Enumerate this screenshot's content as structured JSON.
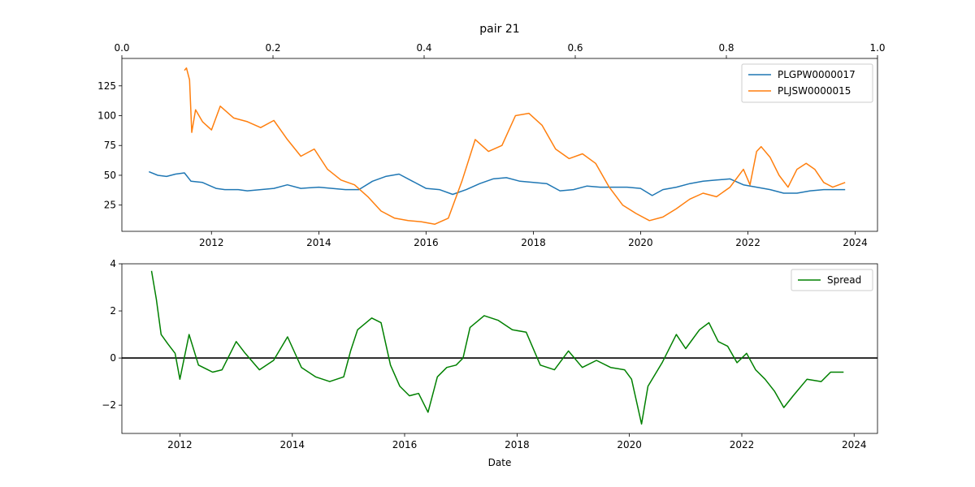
{
  "chart_data": [
    {
      "type": "line",
      "title": "pair 21",
      "x_type": "date",
      "xlim": [
        "2010-05-01",
        "2024-06-01"
      ],
      "ylim": [
        3,
        148
      ],
      "xticks": [
        "2012-01-01",
        "2014-01-01",
        "2016-01-01",
        "2018-01-01",
        "2020-01-01",
        "2022-01-01",
        "2024-01-01"
      ],
      "xtick_labels": [
        "2012",
        "2014",
        "2016",
        "2018",
        "2020",
        "2022",
        "2024"
      ],
      "yticks": [
        25,
        50,
        75,
        100,
        125
      ],
      "ytick_labels": [
        "25",
        "50",
        "75",
        "100",
        "125"
      ],
      "top_axis": {
        "xlim": [
          0,
          1
        ],
        "ticks": [
          0.0,
          0.2,
          0.4,
          0.6,
          0.8,
          1.0
        ],
        "tick_labels": [
          "0.0",
          "0.2",
          "0.4",
          "0.6",
          "0.8",
          "1.0"
        ]
      },
      "legend": "top-right",
      "grid": false,
      "series": [
        {
          "name": "PLGPW0000017",
          "color": "#1f77b4",
          "points": [
            [
              "2010-11-01",
              53
            ],
            [
              "2011-01-01",
              50
            ],
            [
              "2011-03-01",
              49
            ],
            [
              "2011-05-01",
              51
            ],
            [
              "2011-07-01",
              52
            ],
            [
              "2011-08-15",
              45
            ],
            [
              "2011-11-01",
              44
            ],
            [
              "2012-02-01",
              39
            ],
            [
              "2012-04-01",
              38
            ],
            [
              "2012-07-01",
              38
            ],
            [
              "2012-09-01",
              37
            ],
            [
              "2012-12-01",
              38
            ],
            [
              "2013-03-01",
              39
            ],
            [
              "2013-06-01",
              42
            ],
            [
              "2013-09-01",
              39
            ],
            [
              "2014-01-01",
              40
            ],
            [
              "2014-04-01",
              39
            ],
            [
              "2014-07-01",
              38
            ],
            [
              "2014-10-01",
              38
            ],
            [
              "2015-01-01",
              45
            ],
            [
              "2015-04-01",
              49
            ],
            [
              "2015-07-01",
              51
            ],
            [
              "2015-10-01",
              45
            ],
            [
              "2016-01-01",
              39
            ],
            [
              "2016-04-01",
              38
            ],
            [
              "2016-07-01",
              34
            ],
            [
              "2016-10-01",
              38
            ],
            [
              "2017-01-01",
              43
            ],
            [
              "2017-04-01",
              47
            ],
            [
              "2017-07-01",
              48
            ],
            [
              "2017-10-01",
              45
            ],
            [
              "2018-01-01",
              44
            ],
            [
              "2018-04-01",
              43
            ],
            [
              "2018-07-01",
              37
            ],
            [
              "2018-10-01",
              38
            ],
            [
              "2019-01-01",
              41
            ],
            [
              "2019-04-01",
              40
            ],
            [
              "2019-07-01",
              40
            ],
            [
              "2019-10-01",
              40
            ],
            [
              "2020-01-01",
              39
            ],
            [
              "2020-03-20",
              33
            ],
            [
              "2020-06-01",
              38
            ],
            [
              "2020-09-01",
              40
            ],
            [
              "2020-12-01",
              43
            ],
            [
              "2021-03-01",
              45
            ],
            [
              "2021-06-01",
              46
            ],
            [
              "2021-09-01",
              47
            ],
            [
              "2021-12-01",
              42
            ],
            [
              "2022-03-01",
              40
            ],
            [
              "2022-06-01",
              38
            ],
            [
              "2022-09-01",
              35
            ],
            [
              "2022-12-01",
              35
            ],
            [
              "2023-03-01",
              37
            ],
            [
              "2023-06-01",
              38
            ],
            [
              "2023-09-01",
              38
            ],
            [
              "2023-10-25",
              38
            ]
          ]
        },
        {
          "name": "PLJSW0000015",
          "color": "#ff7f0e",
          "points": [
            [
              "2011-07-01",
              138
            ],
            [
              "2011-07-15",
              140
            ],
            [
              "2011-08-05",
              130
            ],
            [
              "2011-08-20",
              86
            ],
            [
              "2011-09-15",
              105
            ],
            [
              "2011-11-01",
              95
            ],
            [
              "2012-01-01",
              88
            ],
            [
              "2012-03-01",
              108
            ],
            [
              "2012-06-01",
              98
            ],
            [
              "2012-09-01",
              95
            ],
            [
              "2012-12-01",
              90
            ],
            [
              "2013-03-01",
              96
            ],
            [
              "2013-06-01",
              80
            ],
            [
              "2013-09-01",
              66
            ],
            [
              "2013-12-01",
              72
            ],
            [
              "2014-03-01",
              55
            ],
            [
              "2014-06-01",
              46
            ],
            [
              "2014-09-01",
              42
            ],
            [
              "2014-12-01",
              32
            ],
            [
              "2015-03-01",
              20
            ],
            [
              "2015-06-01",
              14
            ],
            [
              "2015-09-01",
              12
            ],
            [
              "2015-12-01",
              11
            ],
            [
              "2016-03-01",
              9
            ],
            [
              "2016-06-01",
              14
            ],
            [
              "2016-09-01",
              45
            ],
            [
              "2016-12-01",
              80
            ],
            [
              "2017-03-01",
              70
            ],
            [
              "2017-06-01",
              75
            ],
            [
              "2017-09-01",
              100
            ],
            [
              "2017-12-01",
              102
            ],
            [
              "2018-03-01",
              92
            ],
            [
              "2018-06-01",
              72
            ],
            [
              "2018-09-01",
              64
            ],
            [
              "2018-12-01",
              68
            ],
            [
              "2019-03-01",
              60
            ],
            [
              "2019-06-01",
              40
            ],
            [
              "2019-09-01",
              25
            ],
            [
              "2019-12-01",
              18
            ],
            [
              "2020-03-01",
              12
            ],
            [
              "2020-06-01",
              15
            ],
            [
              "2020-09-01",
              22
            ],
            [
              "2020-12-01",
              30
            ],
            [
              "2021-03-01",
              35
            ],
            [
              "2021-06-01",
              32
            ],
            [
              "2021-09-01",
              40
            ],
            [
              "2021-12-01",
              55
            ],
            [
              "2022-01-15",
              42
            ],
            [
              "2022-03-01",
              70
            ],
            [
              "2022-04-01",
              74
            ],
            [
              "2022-06-01",
              65
            ],
            [
              "2022-08-01",
              50
            ],
            [
              "2022-10-01",
              40
            ],
            [
              "2022-12-01",
              55
            ],
            [
              "2023-02-01",
              60
            ],
            [
              "2023-04-01",
              55
            ],
            [
              "2023-06-01",
              44
            ],
            [
              "2023-08-01",
              40
            ],
            [
              "2023-10-25",
              44
            ]
          ]
        }
      ]
    },
    {
      "type": "line",
      "xlabel": "Date",
      "x_type": "date",
      "xlim": [
        "2010-12-20",
        "2024-06-01"
      ],
      "ylim": [
        -3.2,
        4.0
      ],
      "xticks": [
        "2012-01-01",
        "2014-01-01",
        "2016-01-01",
        "2018-01-01",
        "2020-01-01",
        "2022-01-01",
        "2024-01-01"
      ],
      "xtick_labels": [
        "2012",
        "2014",
        "2016",
        "2018",
        "2020",
        "2022",
        "2024"
      ],
      "yticks": [
        -2,
        0,
        2,
        4
      ],
      "ytick_labels": [
        "−2",
        "0",
        "2",
        "4"
      ],
      "hline": 0,
      "legend": "top-right",
      "grid": false,
      "series": [
        {
          "name": "Spread",
          "color": "#008000",
          "points": [
            [
              "2011-07-01",
              3.7
            ],
            [
              "2011-08-01",
              2.5
            ],
            [
              "2011-09-01",
              1.0
            ],
            [
              "2011-10-15",
              0.6
            ],
            [
              "2011-12-01",
              0.2
            ],
            [
              "2012-01-01",
              -0.9
            ],
            [
              "2012-03-01",
              1.0
            ],
            [
              "2012-05-01",
              -0.3
            ],
            [
              "2012-08-01",
              -0.6
            ],
            [
              "2012-10-01",
              -0.5
            ],
            [
              "2013-01-01",
              0.7
            ],
            [
              "2013-03-01",
              0.2
            ],
            [
              "2013-06-01",
              -0.5
            ],
            [
              "2013-09-01",
              -0.1
            ],
            [
              "2013-12-01",
              0.9
            ],
            [
              "2014-03-01",
              -0.4
            ],
            [
              "2014-06-01",
              -0.8
            ],
            [
              "2014-09-01",
              -1.0
            ],
            [
              "2014-12-01",
              -0.8
            ],
            [
              "2015-01-15",
              0.3
            ],
            [
              "2015-03-01",
              1.2
            ],
            [
              "2015-06-01",
              1.7
            ],
            [
              "2015-08-01",
              1.5
            ],
            [
              "2015-10-01",
              -0.3
            ],
            [
              "2015-12-01",
              -1.2
            ],
            [
              "2016-02-01",
              -1.6
            ],
            [
              "2016-04-01",
              -1.5
            ],
            [
              "2016-06-01",
              -2.3
            ],
            [
              "2016-08-01",
              -0.8
            ],
            [
              "2016-10-01",
              -0.4
            ],
            [
              "2016-12-01",
              -0.3
            ],
            [
              "2017-01-15",
              0.0
            ],
            [
              "2017-03-01",
              1.3
            ],
            [
              "2017-06-01",
              1.8
            ],
            [
              "2017-09-01",
              1.6
            ],
            [
              "2017-12-01",
              1.2
            ],
            [
              "2018-03-01",
              1.1
            ],
            [
              "2018-06-01",
              -0.3
            ],
            [
              "2018-09-01",
              -0.5
            ],
            [
              "2018-12-01",
              0.3
            ],
            [
              "2019-03-01",
              -0.4
            ],
            [
              "2019-06-01",
              -0.1
            ],
            [
              "2019-09-01",
              -0.4
            ],
            [
              "2019-12-01",
              -0.5
            ],
            [
              "2020-01-15",
              -0.9
            ],
            [
              "2020-03-20",
              -2.8
            ],
            [
              "2020-05-01",
              -1.2
            ],
            [
              "2020-08-01",
              -0.2
            ],
            [
              "2020-11-01",
              1.0
            ],
            [
              "2021-01-01",
              0.4
            ],
            [
              "2021-04-01",
              1.2
            ],
            [
              "2021-06-01",
              1.5
            ],
            [
              "2021-08-01",
              0.7
            ],
            [
              "2021-10-01",
              0.5
            ],
            [
              "2021-12-01",
              -0.2
            ],
            [
              "2022-02-01",
              0.2
            ],
            [
              "2022-04-01",
              -0.5
            ],
            [
              "2022-06-01",
              -0.9
            ],
            [
              "2022-08-01",
              -1.4
            ],
            [
              "2022-10-01",
              -2.1
            ],
            [
              "2022-12-01",
              -1.6
            ],
            [
              "2023-03-01",
              -0.9
            ],
            [
              "2023-06-01",
              -1.0
            ],
            [
              "2023-08-01",
              -0.6
            ],
            [
              "2023-10-25",
              -0.6
            ]
          ]
        }
      ]
    }
  ]
}
